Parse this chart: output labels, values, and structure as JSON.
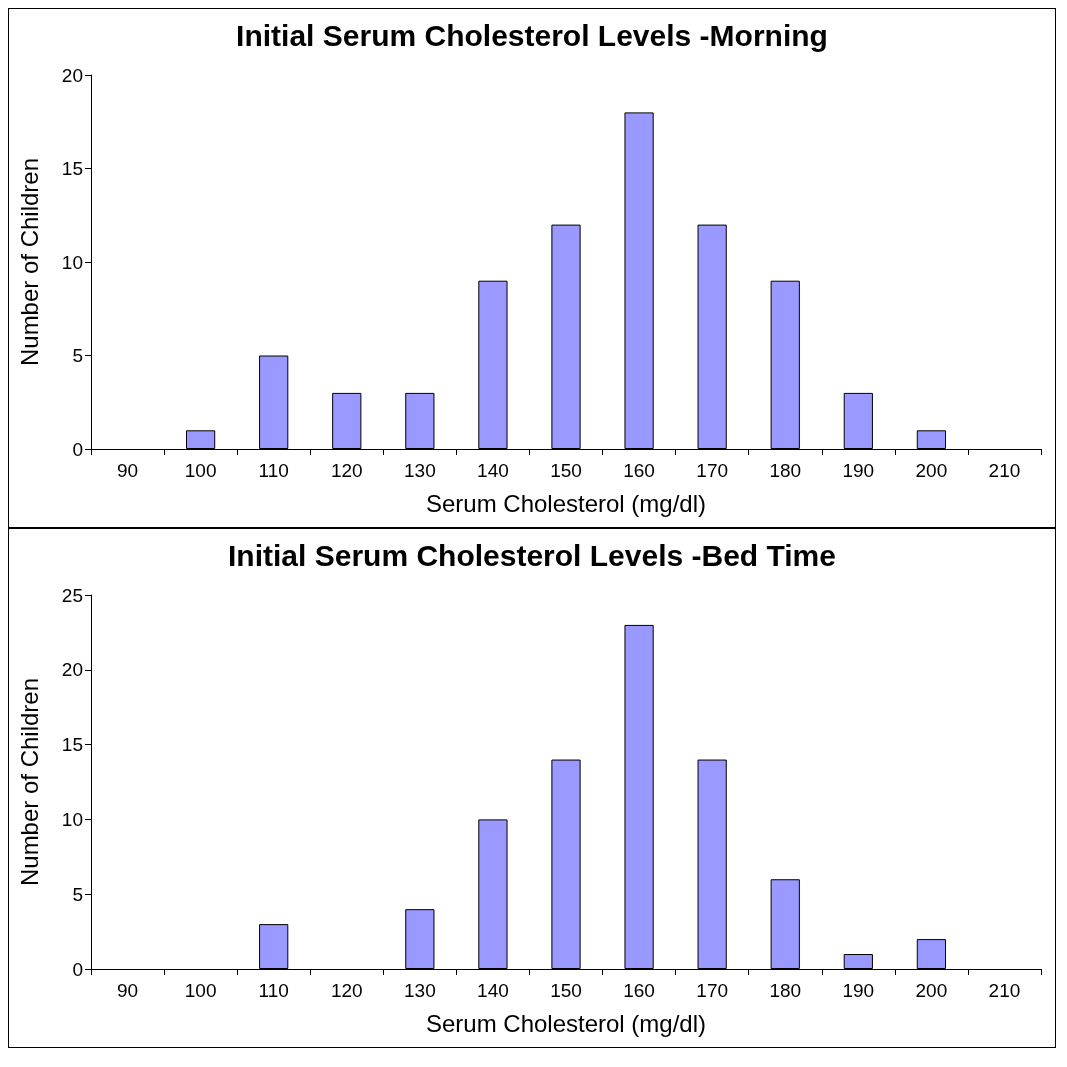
{
  "chart_data": [
    {
      "type": "bar",
      "title": "Initial Serum Cholesterol Levels -Morning",
      "xlabel": "Serum Cholesterol (mg/dl)",
      "ylabel": "Number of Children",
      "categories": [
        "90",
        "100",
        "110",
        "120",
        "130",
        "140",
        "150",
        "160",
        "170",
        "180",
        "190",
        "200",
        "210"
      ],
      "values": [
        0,
        1,
        5,
        3,
        3,
        9,
        12,
        18,
        12,
        9,
        3,
        1,
        0
      ],
      "color": "#9999ff",
      "ylim": [
        0,
        20
      ],
      "yticks": [
        0,
        5,
        10,
        15,
        20
      ],
      "grid": false
    },
    {
      "type": "bar",
      "title": "Initial Serum Cholesterol Levels -Bed Time",
      "xlabel": "Serum Cholesterol (mg/dl)",
      "ylabel": "Number of Children",
      "categories": [
        "90",
        "100",
        "110",
        "120",
        "130",
        "140",
        "150",
        "160",
        "170",
        "180",
        "190",
        "200",
        "210"
      ],
      "values": [
        0,
        0,
        3,
        0,
        4,
        10,
        14,
        23,
        14,
        6,
        1,
        2,
        0
      ],
      "color": "#9999ff",
      "ylim": [
        0,
        25
      ],
      "yticks": [
        0,
        5,
        10,
        15,
        20,
        25
      ],
      "grid": false
    }
  ]
}
